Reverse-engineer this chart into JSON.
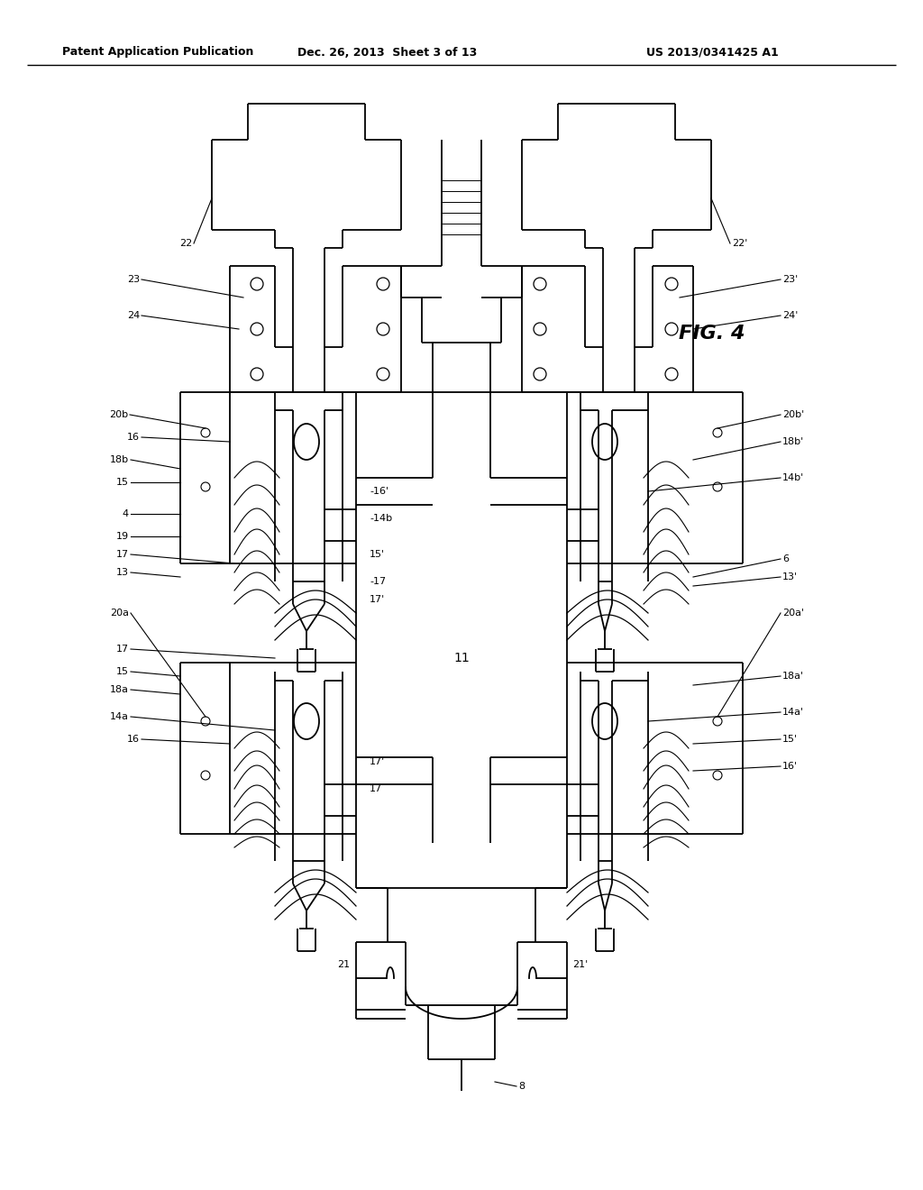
{
  "bg_color": "#ffffff",
  "line_color": "#000000",
  "header_left": "Patent Application Publication",
  "header_center": "Dec. 26, 2013  Sheet 3 of 13",
  "header_right": "US 2013/0341425 A1",
  "fig_label": "FIG. 4",
  "title_fontsize": 9,
  "fig_label_fontsize": 16,
  "lw": 1.3
}
